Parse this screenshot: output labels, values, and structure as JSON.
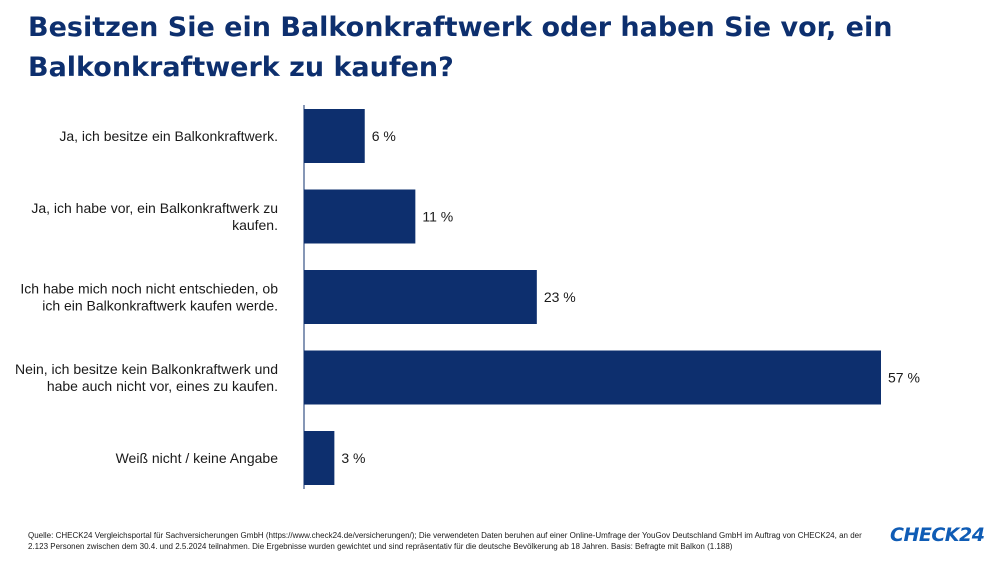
{
  "title": "Besitzen Sie ein Balkonkraftwerk oder haben Sie vor, ein Balkonkraftwerk zu kaufen?",
  "chart_data": {
    "type": "bar",
    "orientation": "horizontal",
    "categories": [
      [
        "Ja, ich besitze ein Balkonkraftwerk."
      ],
      [
        "Ja, ich habe vor, ein Balkonkraftwerk zu",
        "kaufen."
      ],
      [
        "Ich habe mich noch nicht entschieden, ob",
        "ich ein Balkonkraftwerk kaufen werde."
      ],
      [
        "Nein, ich besitze kein Balkonkraftwerk und",
        "habe auch nicht vor, eines zu kaufen."
      ],
      [
        "Weiß nicht / keine Angabe"
      ]
    ],
    "values": [
      6,
      11,
      23,
      57,
      3
    ],
    "value_labels": [
      "6 %",
      "11 %",
      "23 %",
      "57 %",
      "3 %"
    ],
    "unit": "%",
    "xlim": [
      0,
      57
    ],
    "bar_color": "#0d2f6e",
    "grid": false,
    "legend": "none"
  },
  "footnote": "Quelle: CHECK24 Vergleichsportal für Sachversicherungen GmbH (https://www.check24.de/versicherungen/); Die verwendeten Daten beruhen auf einer Online-Umfrage der YouGov Deutschland GmbH im Auftrag von CHECK24, an der 2.123 Personen zwischen dem 30.4. und 2.5.2024 teilnahmen. Die Ergebnisse wurden gewichtet und sind repräsentativ für die deutsche Bevölkerung ab 18 Jahren. Basis: Befragte mit Balkon (1.188)",
  "logo_text": "CHECK24",
  "logo_color": "#0f5cb5"
}
